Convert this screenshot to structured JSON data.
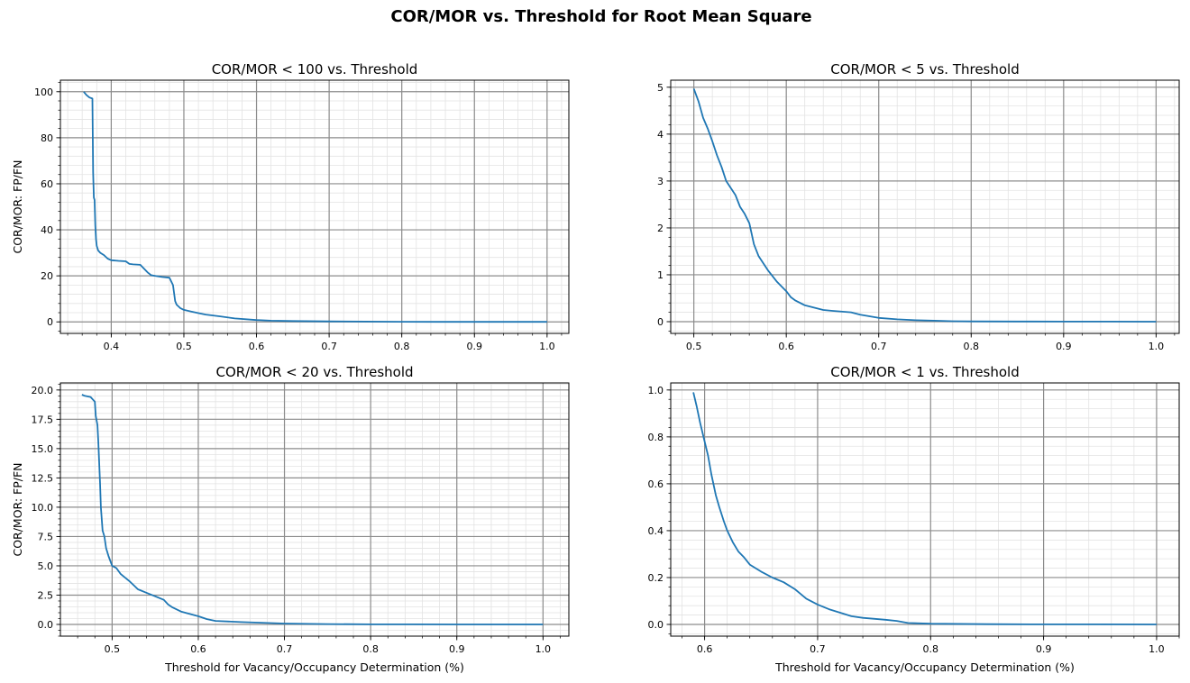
{
  "figure": {
    "title": "COR/MOR vs. Threshold for Root Mean Square"
  },
  "chart_data": [
    {
      "type": "line",
      "title": "COR/MOR < 100 vs. Threshold",
      "xlabel": "",
      "ylabel": "COR/MOR: FP/FN",
      "xlim": [
        0.33,
        1.03
      ],
      "ylim": [
        -5,
        105
      ],
      "xticks": [
        0.4,
        0.5,
        0.6,
        0.7,
        0.8,
        0.9,
        1.0
      ],
      "xtick_labels": [
        "0.4",
        "0.5",
        "0.6",
        "0.7",
        "0.8",
        "0.9",
        "1.0"
      ],
      "yticks": [
        0,
        20,
        40,
        60,
        80,
        100
      ],
      "ytick_labels": [
        "0",
        "20",
        "40",
        "60",
        "80",
        "100"
      ],
      "grid": true,
      "line_color": "#1f77b4",
      "series": [
        {
          "x": [
            0.362,
            0.366,
            0.37,
            0.374,
            0.375,
            0.376,
            0.377,
            0.378,
            0.379,
            0.38,
            0.382,
            0.385,
            0.39,
            0.395,
            0.4,
            0.41,
            0.42,
            0.425,
            0.43,
            0.44,
            0.45,
            0.455,
            0.46,
            0.47,
            0.48,
            0.485,
            0.488,
            0.49,
            0.495,
            0.5,
            0.51,
            0.52,
            0.53,
            0.55,
            0.57,
            0.6,
            0.62,
            0.65,
            0.7,
            0.75,
            0.8,
            0.85,
            0.9,
            0.95,
            1.0
          ],
          "y": [
            100,
            98.5,
            97.5,
            97,
            65,
            54,
            53,
            42,
            36,
            33,
            31,
            30,
            29,
            27.5,
            26.8,
            26.5,
            26.3,
            25.2,
            25,
            24.8,
            21.5,
            20.3,
            20,
            19.5,
            19.2,
            16,
            9,
            7.5,
            6,
            5.2,
            4.5,
            3.8,
            3.2,
            2.4,
            1.5,
            0.8,
            0.5,
            0.35,
            0.2,
            0.12,
            0.06,
            0.03,
            0.01,
            0.005,
            0
          ]
        }
      ]
    },
    {
      "type": "line",
      "title": "COR/MOR < 5 vs. Threshold",
      "xlabel": "",
      "ylabel": "",
      "xlim": [
        0.475,
        1.025
      ],
      "ylim": [
        -0.25,
        5.15
      ],
      "xticks": [
        0.5,
        0.6,
        0.7,
        0.8,
        0.9,
        1.0
      ],
      "xtick_labels": [
        "0.5",
        "0.6",
        "0.7",
        "0.8",
        "0.9",
        "1.0"
      ],
      "yticks": [
        0,
        1,
        2,
        3,
        4,
        5
      ],
      "ytick_labels": [
        "0",
        "1",
        "2",
        "3",
        "4",
        "5"
      ],
      "grid": true,
      "line_color": "#1f77b4",
      "series": [
        {
          "x": [
            0.5,
            0.505,
            0.51,
            0.515,
            0.52,
            0.525,
            0.53,
            0.535,
            0.54,
            0.545,
            0.55,
            0.555,
            0.56,
            0.565,
            0.57,
            0.575,
            0.58,
            0.59,
            0.6,
            0.605,
            0.61,
            0.62,
            0.63,
            0.64,
            0.65,
            0.67,
            0.68,
            0.7,
            0.72,
            0.74,
            0.76,
            0.78,
            0.8,
            0.85,
            0.9,
            0.95,
            1.0
          ],
          "y": [
            4.97,
            4.7,
            4.35,
            4.12,
            3.85,
            3.55,
            3.3,
            3.0,
            2.85,
            2.7,
            2.45,
            2.3,
            2.1,
            1.65,
            1.4,
            1.25,
            1.1,
            0.85,
            0.65,
            0.52,
            0.45,
            0.35,
            0.3,
            0.25,
            0.23,
            0.2,
            0.15,
            0.08,
            0.05,
            0.03,
            0.02,
            0.01,
            0.005,
            0.003,
            0.002,
            0.001,
            0
          ]
        }
      ]
    },
    {
      "type": "line",
      "title": "COR/MOR < 20 vs. Threshold",
      "xlabel": "Threshold for Vacancy/Occupancy Determination (%)",
      "ylabel": "COR/MOR: FP/FN",
      "xlim": [
        0.44,
        1.03
      ],
      "ylim": [
        -1,
        20.6
      ],
      "xticks": [
        0.5,
        0.6,
        0.7,
        0.8,
        0.9,
        1.0
      ],
      "xtick_labels": [
        "0.5",
        "0.6",
        "0.7",
        "0.8",
        "0.9",
        "1.0"
      ],
      "yticks": [
        0,
        2.5,
        5,
        7.5,
        10,
        12.5,
        15,
        17.5,
        20
      ],
      "ytick_labels": [
        "0.0",
        "2.5",
        "5.0",
        "7.5",
        "10.0",
        "12.5",
        "15.0",
        "17.5",
        "20.0"
      ],
      "grid": true,
      "line_color": "#1f77b4",
      "series": [
        {
          "x": [
            0.465,
            0.468,
            0.475,
            0.48,
            0.481,
            0.483,
            0.484,
            0.486,
            0.487,
            0.489,
            0.491,
            0.493,
            0.496,
            0.5,
            0.505,
            0.51,
            0.52,
            0.53,
            0.54,
            0.55,
            0.56,
            0.565,
            0.57,
            0.58,
            0.6,
            0.61,
            0.62,
            0.65,
            0.7,
            0.75,
            0.8,
            0.85,
            0.9,
            0.95,
            1.0
          ],
          "y": [
            19.6,
            19.5,
            19.4,
            19.0,
            17.8,
            17.0,
            15.5,
            12.0,
            10.0,
            8.0,
            7.5,
            6.5,
            5.8,
            5.0,
            4.8,
            4.3,
            3.7,
            3.0,
            2.7,
            2.4,
            2.1,
            1.7,
            1.45,
            1.1,
            0.7,
            0.45,
            0.3,
            0.2,
            0.08,
            0.03,
            0.01,
            0.005,
            0.002,
            0.001,
            0
          ]
        }
      ]
    },
    {
      "type": "line",
      "title": "COR/MOR < 1 vs. Threshold",
      "xlabel": "Threshold for Vacancy/Occupancy Determination (%)",
      "ylabel": "",
      "xlim": [
        0.57,
        1.02
      ],
      "ylim": [
        -0.05,
        1.03
      ],
      "xticks": [
        0.6,
        0.7,
        0.8,
        0.9,
        1.0
      ],
      "xtick_labels": [
        "0.6",
        "0.7",
        "0.8",
        "0.9",
        "1.0"
      ],
      "yticks": [
        0,
        0.2,
        0.4,
        0.6,
        0.8,
        1.0
      ],
      "ytick_labels": [
        "0.0",
        "0.2",
        "0.4",
        "0.6",
        "0.8",
        "1.0"
      ],
      "grid": true,
      "line_color": "#1f77b4",
      "series": [
        {
          "x": [
            0.59,
            0.593,
            0.596,
            0.6,
            0.603,
            0.606,
            0.61,
            0.613,
            0.617,
            0.62,
            0.625,
            0.63,
            0.635,
            0.64,
            0.645,
            0.65,
            0.66,
            0.67,
            0.68,
            0.69,
            0.7,
            0.71,
            0.72,
            0.73,
            0.74,
            0.76,
            0.77,
            0.78,
            0.8,
            0.85,
            0.9,
            0.95,
            1.0
          ],
          "y": [
            0.99,
            0.93,
            0.86,
            0.78,
            0.72,
            0.64,
            0.55,
            0.5,
            0.44,
            0.4,
            0.35,
            0.31,
            0.285,
            0.255,
            0.24,
            0.225,
            0.2,
            0.18,
            0.15,
            0.11,
            0.085,
            0.065,
            0.05,
            0.035,
            0.028,
            0.02,
            0.015,
            0.006,
            0.003,
            0.001,
            0.0005,
            0.0002,
            0
          ]
        }
      ]
    }
  ]
}
